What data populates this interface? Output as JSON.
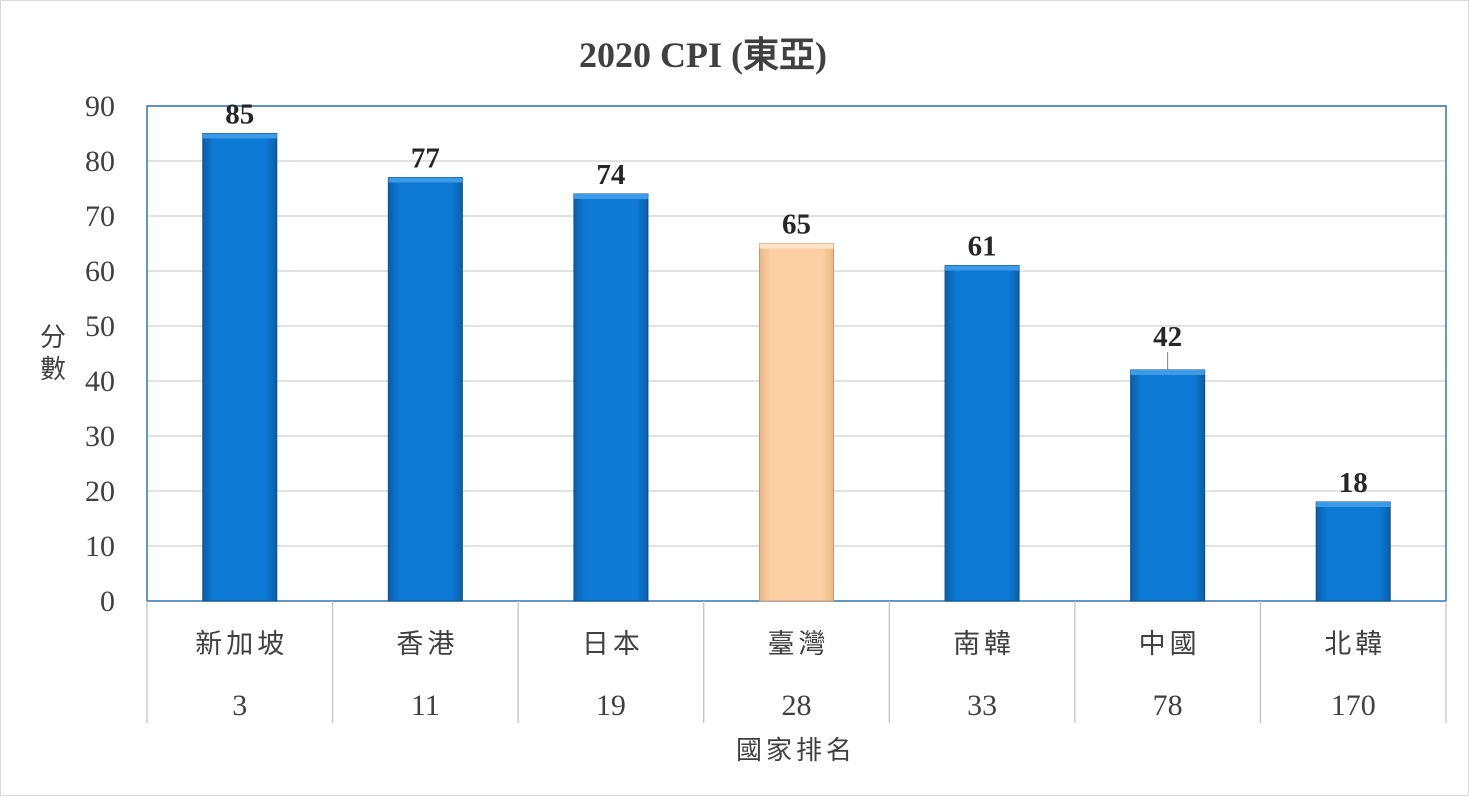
{
  "chart_data": {
    "type": "bar",
    "title": "2020 CPI (東亞)",
    "ylabel": "分數",
    "xlabel": "國家排名",
    "ylim": [
      0,
      90
    ],
    "yticks": [
      0,
      10,
      20,
      30,
      40,
      50,
      60,
      70,
      80,
      90
    ],
    "grid": true,
    "categories": [
      "新加坡",
      "香港",
      "日本",
      "臺灣",
      "南韓",
      "中國",
      "北韓"
    ],
    "ranks": [
      "3",
      "11",
      "19",
      "28",
      "33",
      "78",
      "170"
    ],
    "values": [
      85,
      77,
      74,
      65,
      61,
      42,
      18
    ],
    "highlight_index": 3,
    "colors": {
      "bar": "#0a73c8",
      "bar_highlight": "#f8c99b",
      "plot_border": "#2e75b6",
      "grid": "#d9d9d9"
    }
  }
}
